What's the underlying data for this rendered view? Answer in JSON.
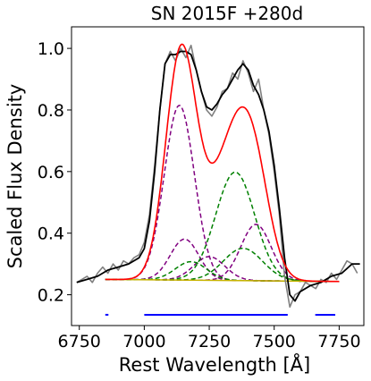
{
  "chart_data": {
    "type": "line",
    "title": "SN 2015F  +280d",
    "xlabel": "Rest Wavelength [Å]",
    "ylabel": "Scaled Flux Density",
    "xlim": [
      6720,
      7845
    ],
    "ylim": [
      0.1,
      1.07
    ],
    "xticks": [
      6750,
      7000,
      7250,
      7500,
      7750
    ],
    "yticks": [
      0.2,
      0.4,
      0.6,
      0.8,
      1.0
    ],
    "ytick_labels": [
      "0.2",
      "0.4",
      "0.6",
      "0.8",
      "1.0"
    ],
    "grid": false,
    "legend": "none",
    "baseline": {
      "x": [
        6850,
        7750
      ],
      "y": [
        0.25,
        0.243
      ]
    },
    "series": [
      {
        "role": "observed",
        "color": "#808080",
        "x": [
          6740,
          6760,
          6780,
          6800,
          6820,
          6840,
          6860,
          6880,
          6900,
          6920,
          6940,
          6960,
          6980,
          7000,
          7020,
          7040,
          7060,
          7080,
          7100,
          7120,
          7140,
          7160,
          7180,
          7200,
          7220,
          7240,
          7260,
          7280,
          7300,
          7320,
          7340,
          7360,
          7380,
          7400,
          7420,
          7440,
          7460,
          7480,
          7500,
          7520,
          7540,
          7560,
          7580,
          7600,
          7620,
          7640,
          7660,
          7680,
          7700,
          7720,
          7740,
          7760,
          7780,
          7800,
          7820
        ],
        "y": [
          0.24,
          0.25,
          0.26,
          0.24,
          0.27,
          0.29,
          0.27,
          0.3,
          0.28,
          0.31,
          0.3,
          0.32,
          0.33,
          0.37,
          0.46,
          0.62,
          0.8,
          0.95,
          0.99,
          0.96,
          1.0,
          0.97,
          1.01,
          0.93,
          0.86,
          0.8,
          0.78,
          0.81,
          0.86,
          0.87,
          0.92,
          0.9,
          0.96,
          0.92,
          0.86,
          0.9,
          0.8,
          0.72,
          0.6,
          0.46,
          0.26,
          0.16,
          0.2,
          0.21,
          0.24,
          0.23,
          0.22,
          0.25,
          0.24,
          0.27,
          0.25,
          0.28,
          0.31,
          0.3,
          0.27
        ]
      },
      {
        "role": "smoothed",
        "color": "#000000",
        "x": [
          6740,
          6780,
          6820,
          6860,
          6900,
          6940,
          6980,
          7000,
          7020,
          7040,
          7060,
          7080,
          7100,
          7120,
          7140,
          7160,
          7180,
          7200,
          7220,
          7240,
          7260,
          7280,
          7300,
          7320,
          7340,
          7360,
          7380,
          7400,
          7420,
          7440,
          7460,
          7480,
          7500,
          7520,
          7540,
          7560,
          7580,
          7600,
          7640,
          7680,
          7720,
          7760,
          7800,
          7830
        ],
        "y": [
          0.24,
          0.25,
          0.26,
          0.28,
          0.29,
          0.3,
          0.32,
          0.35,
          0.44,
          0.6,
          0.8,
          0.95,
          0.98,
          0.98,
          0.99,
          0.99,
          0.98,
          0.93,
          0.86,
          0.81,
          0.8,
          0.82,
          0.85,
          0.87,
          0.9,
          0.93,
          0.95,
          0.93,
          0.88,
          0.85,
          0.8,
          0.73,
          0.62,
          0.48,
          0.32,
          0.2,
          0.18,
          0.21,
          0.23,
          0.24,
          0.26,
          0.27,
          0.3,
          0.3
        ]
      },
      {
        "role": "model-total",
        "color": "#ff0000",
        "components": "sum"
      }
    ],
    "components": [
      {
        "color": "#800080",
        "amp": 0.567,
        "center": 7135,
        "sigma": 58
      },
      {
        "color": "#800080",
        "amp": 0.133,
        "center": 7155,
        "sigma": 55
      },
      {
        "color": "#800080",
        "amp": 0.077,
        "center": 7250,
        "sigma": 60
      },
      {
        "color": "#800080",
        "amp": 0.183,
        "center": 7430,
        "sigma": 58
      },
      {
        "color": "#008000",
        "amp": 0.352,
        "center": 7350,
        "sigma": 75
      },
      {
        "color": "#008000",
        "amp": 0.105,
        "center": 7380,
        "sigma": 75
      },
      {
        "color": "#008000",
        "amp": 0.06,
        "center": 7180,
        "sigma": 60
      }
    ],
    "component_range": [
      6850,
      7750
    ],
    "continuum_color": "#c8b400",
    "masked_regions": {
      "color": "#0000ff",
      "y": 0.135,
      "ranges": [
        [
          6850,
          6862
        ],
        [
          7000,
          7552
        ],
        [
          7658,
          7735
        ]
      ]
    }
  }
}
